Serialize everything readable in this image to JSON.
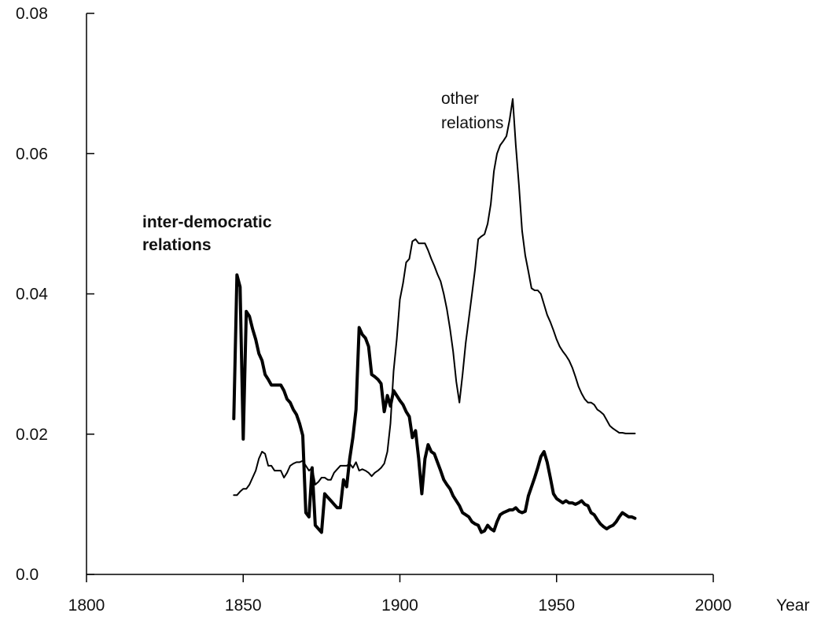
{
  "chart_data": {
    "type": "line",
    "title": "",
    "xlabel": "Year",
    "ylabel": "",
    "xlim": [
      1800,
      2000
    ],
    "ylim": [
      0.0,
      0.08
    ],
    "x_ticks": [
      1800,
      1850,
      1900,
      1950,
      2000
    ],
    "x_tick_labels": [
      "1800",
      "1850",
      "1900",
      "1950",
      "2000"
    ],
    "y_ticks": [
      0.0,
      0.02,
      0.04,
      0.06,
      0.08
    ],
    "y_tick_labels": [
      "0.0",
      "0.02",
      "0.04",
      "0.06",
      "0.08"
    ],
    "grid": false,
    "legend": "none",
    "annotations": {
      "inter_democratic": [
        "inter-democratic",
        "relations"
      ],
      "other": [
        "other",
        "relations"
      ]
    },
    "series": [
      {
        "name": "inter-democratic relations",
        "style": "thick",
        "color": "#000000",
        "points": [
          [
            1847,
            0.0222
          ],
          [
            1848,
            0.0427
          ],
          [
            1849,
            0.041
          ],
          [
            1850,
            0.0193
          ],
          [
            1851,
            0.0375
          ],
          [
            1852,
            0.0368
          ],
          [
            1853,
            0.035
          ],
          [
            1854,
            0.0335
          ],
          [
            1855,
            0.0315
          ],
          [
            1856,
            0.0305
          ],
          [
            1857,
            0.0285
          ],
          [
            1858,
            0.0278
          ],
          [
            1859,
            0.027
          ],
          [
            1860,
            0.027
          ],
          [
            1861,
            0.027
          ],
          [
            1862,
            0.027
          ],
          [
            1863,
            0.0262
          ],
          [
            1864,
            0.025
          ],
          [
            1865,
            0.0245
          ],
          [
            1866,
            0.0235
          ],
          [
            1867,
            0.0228
          ],
          [
            1868,
            0.0215
          ],
          [
            1869,
            0.0198
          ],
          [
            1870,
            0.0088
          ],
          [
            1871,
            0.0082
          ],
          [
            1872,
            0.0152
          ],
          [
            1873,
            0.007
          ],
          [
            1874,
            0.0065
          ],
          [
            1875,
            0.006
          ],
          [
            1876,
            0.0115
          ],
          [
            1877,
            0.011
          ],
          [
            1878,
            0.0105
          ],
          [
            1879,
            0.01
          ],
          [
            1880,
            0.0095
          ],
          [
            1881,
            0.0095
          ],
          [
            1882,
            0.0135
          ],
          [
            1883,
            0.0125
          ],
          [
            1884,
            0.0165
          ],
          [
            1885,
            0.0195
          ],
          [
            1886,
            0.0235
          ],
          [
            1887,
            0.0352
          ],
          [
            1888,
            0.0342
          ],
          [
            1889,
            0.0337
          ],
          [
            1890,
            0.0325
          ],
          [
            1891,
            0.0285
          ],
          [
            1892,
            0.0282
          ],
          [
            1893,
            0.0278
          ],
          [
            1894,
            0.0272
          ],
          [
            1895,
            0.0232
          ],
          [
            1896,
            0.0255
          ],
          [
            1897,
            0.024
          ],
          [
            1898,
            0.0262
          ],
          [
            1899,
            0.0255
          ],
          [
            1900,
            0.0248
          ],
          [
            1901,
            0.0242
          ],
          [
            1902,
            0.0232
          ],
          [
            1903,
            0.0225
          ],
          [
            1904,
            0.0195
          ],
          [
            1905,
            0.0205
          ],
          [
            1906,
            0.0165
          ],
          [
            1907,
            0.0115
          ],
          [
            1908,
            0.0165
          ],
          [
            1909,
            0.0185
          ],
          [
            1910,
            0.0175
          ],
          [
            1911,
            0.0172
          ],
          [
            1912,
            0.016
          ],
          [
            1913,
            0.0148
          ],
          [
            1914,
            0.0135
          ],
          [
            1915,
            0.0128
          ],
          [
            1916,
            0.0122
          ],
          [
            1917,
            0.0112
          ],
          [
            1918,
            0.0105
          ],
          [
            1919,
            0.0098
          ],
          [
            1920,
            0.0088
          ],
          [
            1921,
            0.0085
          ],
          [
            1922,
            0.0082
          ],
          [
            1923,
            0.0075
          ],
          [
            1924,
            0.0072
          ],
          [
            1925,
            0.007
          ],
          [
            1926,
            0.006
          ],
          [
            1927,
            0.0062
          ],
          [
            1928,
            0.007
          ],
          [
            1929,
            0.0065
          ],
          [
            1930,
            0.0062
          ],
          [
            1931,
            0.0075
          ],
          [
            1932,
            0.0085
          ],
          [
            1933,
            0.0088
          ],
          [
            1934,
            0.009
          ],
          [
            1935,
            0.0092
          ],
          [
            1936,
            0.0092
          ],
          [
            1937,
            0.0095
          ],
          [
            1938,
            0.009
          ],
          [
            1939,
            0.0088
          ],
          [
            1940,
            0.009
          ],
          [
            1941,
            0.0112
          ],
          [
            1942,
            0.0125
          ],
          [
            1943,
            0.0138
          ],
          [
            1944,
            0.0152
          ],
          [
            1945,
            0.0168
          ],
          [
            1946,
            0.0175
          ],
          [
            1947,
            0.016
          ],
          [
            1948,
            0.0138
          ],
          [
            1949,
            0.0115
          ],
          [
            1950,
            0.0108
          ],
          [
            1951,
            0.0105
          ],
          [
            1952,
            0.0102
          ],
          [
            1953,
            0.0105
          ],
          [
            1954,
            0.0102
          ],
          [
            1955,
            0.0102
          ],
          [
            1956,
            0.01
          ],
          [
            1957,
            0.0102
          ],
          [
            1958,
            0.0105
          ],
          [
            1959,
            0.01
          ],
          [
            1960,
            0.0098
          ],
          [
            1961,
            0.0088
          ],
          [
            1962,
            0.0085
          ],
          [
            1963,
            0.0078
          ],
          [
            1964,
            0.0072
          ],
          [
            1965,
            0.0068
          ],
          [
            1966,
            0.0065
          ],
          [
            1967,
            0.0068
          ],
          [
            1968,
            0.007
          ],
          [
            1969,
            0.0075
          ],
          [
            1970,
            0.0082
          ],
          [
            1971,
            0.0088
          ],
          [
            1972,
            0.0085
          ],
          [
            1973,
            0.0082
          ],
          [
            1974,
            0.0082
          ],
          [
            1975,
            0.008
          ]
        ]
      },
      {
        "name": "other relations",
        "style": "thin",
        "color": "#000000",
        "points": [
          [
            1847,
            0.0113
          ],
          [
            1848,
            0.0113
          ],
          [
            1849,
            0.0118
          ],
          [
            1850,
            0.0122
          ],
          [
            1851,
            0.0122
          ],
          [
            1852,
            0.0128
          ],
          [
            1853,
            0.0138
          ],
          [
            1854,
            0.0148
          ],
          [
            1855,
            0.0165
          ],
          [
            1856,
            0.0175
          ],
          [
            1857,
            0.0172
          ],
          [
            1858,
            0.0155
          ],
          [
            1859,
            0.0155
          ],
          [
            1860,
            0.0148
          ],
          [
            1861,
            0.0148
          ],
          [
            1862,
            0.0148
          ],
          [
            1863,
            0.0138
          ],
          [
            1864,
            0.0145
          ],
          [
            1865,
            0.0155
          ],
          [
            1866,
            0.0158
          ],
          [
            1867,
            0.016
          ],
          [
            1868,
            0.016
          ],
          [
            1869,
            0.0162
          ],
          [
            1870,
            0.0155
          ],
          [
            1871,
            0.0148
          ],
          [
            1872,
            0.0152
          ],
          [
            1873,
            0.0128
          ],
          [
            1874,
            0.0132
          ],
          [
            1875,
            0.0138
          ],
          [
            1876,
            0.0138
          ],
          [
            1877,
            0.0135
          ],
          [
            1878,
            0.0135
          ],
          [
            1879,
            0.0145
          ],
          [
            1880,
            0.015
          ],
          [
            1881,
            0.0155
          ],
          [
            1882,
            0.0155
          ],
          [
            1883,
            0.0155
          ],
          [
            1884,
            0.0158
          ],
          [
            1885,
            0.0152
          ],
          [
            1886,
            0.016
          ],
          [
            1887,
            0.0148
          ],
          [
            1888,
            0.015
          ],
          [
            1889,
            0.0148
          ],
          [
            1890,
            0.0145
          ],
          [
            1891,
            0.014
          ],
          [
            1892,
            0.0145
          ],
          [
            1893,
            0.0148
          ],
          [
            1894,
            0.0152
          ],
          [
            1895,
            0.0158
          ],
          [
            1896,
            0.0175
          ],
          [
            1897,
            0.0215
          ],
          [
            1898,
            0.029
          ],
          [
            1899,
            0.0335
          ],
          [
            1900,
            0.0392
          ],
          [
            1901,
            0.0415
          ],
          [
            1902,
            0.0445
          ],
          [
            1903,
            0.045
          ],
          [
            1904,
            0.0475
          ],
          [
            1905,
            0.0478
          ],
          [
            1906,
            0.0472
          ],
          [
            1907,
            0.0472
          ],
          [
            1908,
            0.0472
          ],
          [
            1909,
            0.0462
          ],
          [
            1910,
            0.045
          ],
          [
            1911,
            0.044
          ],
          [
            1912,
            0.0428
          ],
          [
            1913,
            0.0418
          ],
          [
            1914,
            0.04
          ],
          [
            1915,
            0.0378
          ],
          [
            1916,
            0.035
          ],
          [
            1917,
            0.0318
          ],
          [
            1918,
            0.0275
          ],
          [
            1919,
            0.0245
          ],
          [
            1920,
            0.0285
          ],
          [
            1921,
            0.033
          ],
          [
            1922,
            0.0365
          ],
          [
            1923,
            0.04
          ],
          [
            1924,
            0.0435
          ],
          [
            1925,
            0.0478
          ],
          [
            1926,
            0.0482
          ],
          [
            1927,
            0.0485
          ],
          [
            1928,
            0.05
          ],
          [
            1929,
            0.0528
          ],
          [
            1930,
            0.0575
          ],
          [
            1931,
            0.06
          ],
          [
            1932,
            0.0612
          ],
          [
            1933,
            0.0618
          ],
          [
            1934,
            0.0625
          ],
          [
            1935,
            0.0648
          ],
          [
            1936,
            0.0678
          ],
          [
            1937,
            0.0612
          ],
          [
            1938,
            0.0555
          ],
          [
            1939,
            0.049
          ],
          [
            1940,
            0.0455
          ],
          [
            1941,
            0.0432
          ],
          [
            1942,
            0.0408
          ],
          [
            1943,
            0.0405
          ],
          [
            1944,
            0.0405
          ],
          [
            1945,
            0.04
          ],
          [
            1946,
            0.0385
          ],
          [
            1947,
            0.037
          ],
          [
            1948,
            0.036
          ],
          [
            1949,
            0.0348
          ],
          [
            1950,
            0.0335
          ],
          [
            1951,
            0.0325
          ],
          [
            1952,
            0.0318
          ],
          [
            1953,
            0.0312
          ],
          [
            1954,
            0.0305
          ],
          [
            1955,
            0.0295
          ],
          [
            1956,
            0.0282
          ],
          [
            1957,
            0.0268
          ],
          [
            1958,
            0.0258
          ],
          [
            1959,
            0.025
          ],
          [
            1960,
            0.0245
          ],
          [
            1961,
            0.0245
          ],
          [
            1962,
            0.0242
          ],
          [
            1963,
            0.0235
          ],
          [
            1964,
            0.0232
          ],
          [
            1965,
            0.0228
          ],
          [
            1966,
            0.022
          ],
          [
            1967,
            0.0212
          ],
          [
            1968,
            0.0208
          ],
          [
            1969,
            0.0205
          ],
          [
            1970,
            0.0202
          ],
          [
            1971,
            0.0202
          ],
          [
            1972,
            0.0201
          ],
          [
            1973,
            0.0201
          ],
          [
            1974,
            0.0201
          ],
          [
            1975,
            0.0201
          ]
        ]
      }
    ]
  }
}
